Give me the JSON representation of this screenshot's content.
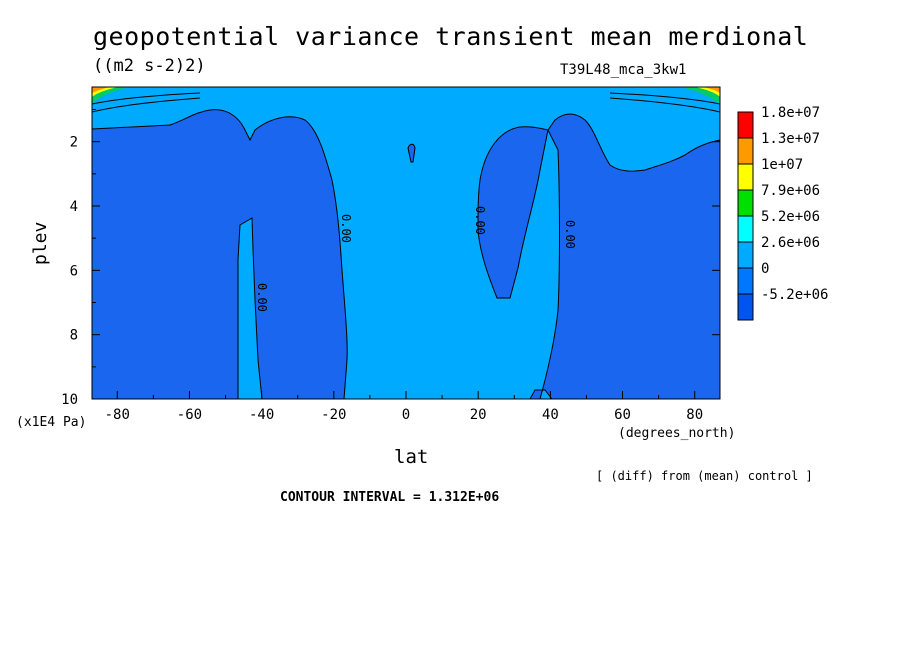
{
  "header": {
    "title": "geopotential variance transient mean merdional",
    "units": "((m2 s-2)2)",
    "run_id": "T39L48_mca_3kw1"
  },
  "footer": {
    "diff_note": "[ (diff) from (mean) control ]",
    "contour_interval": "CONTOUR INTERVAL = 1.312E+06"
  },
  "chart_data": {
    "type": "contour",
    "xlabel": "lat",
    "x_units": "(degrees_north)",
    "ylabel": "plev",
    "y_units": "(x1E4 Pa)",
    "xlim": [
      -87,
      87
    ],
    "ylim": [
      0.3,
      10
    ],
    "y_reversed": true,
    "x_ticks": [
      -80,
      -60,
      -40,
      -20,
      0,
      20,
      40,
      60,
      80
    ],
    "y_ticks": [
      2,
      4,
      6,
      8,
      10
    ],
    "contour_labels": [
      "0.00",
      "0.00",
      "0.00",
      "0.00"
    ],
    "colorbar": {
      "levels": [
        "1.8e+07",
        "1.3e+07",
        "1e+07",
        "7.9e+06",
        "5.2e+06",
        "2.6e+06",
        "0",
        "-5.2e+06"
      ],
      "colors": [
        "#ff0000",
        "#ff9900",
        "#ffff00",
        "#00e000",
        "#00ffff",
        "#00aaff",
        "#0077ff",
        "#0055ee"
      ]
    },
    "regions": [
      {
        "class": "negative",
        "color": "#1a66ee",
        "description": "below 0"
      },
      {
        "class": "zero_to_positive",
        "color": "#00aaff",
        "description": "0 to 2.6e+06"
      }
    ]
  }
}
